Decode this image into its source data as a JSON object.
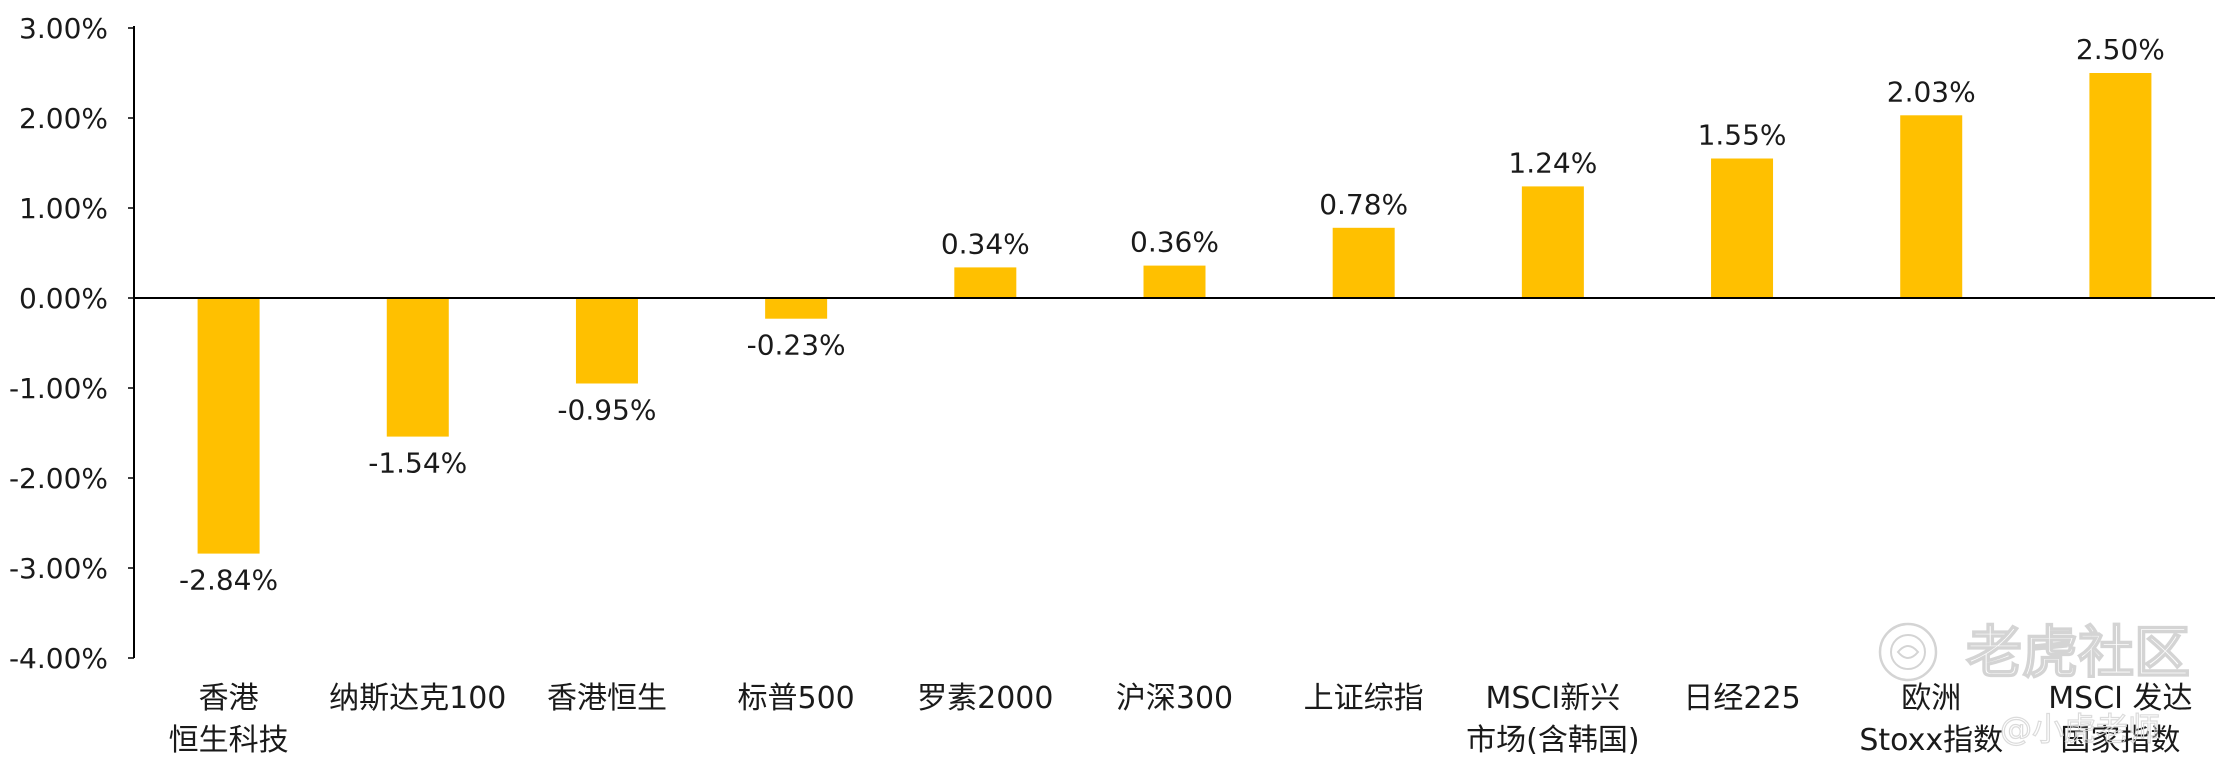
{
  "chart_data": {
    "type": "bar",
    "categories": [
      [
        "香港",
        "恒生科技"
      ],
      [
        "纳斯达克100"
      ],
      [
        "香港恒生"
      ],
      [
        "标普500"
      ],
      [
        "罗素2000"
      ],
      [
        "沪深300"
      ],
      [
        "上证综指"
      ],
      [
        "MSCI新兴",
        "市场(含韩国)"
      ],
      [
        "日经225"
      ],
      [
        "欧洲",
        "Stoxx指数"
      ],
      [
        "MSCI 发达",
        "国家指数"
      ]
    ],
    "values": [
      -2.84,
      -1.54,
      -0.95,
      -0.23,
      0.34,
      0.36,
      0.78,
      1.24,
      1.55,
      2.03,
      2.5
    ],
    "value_labels": [
      "-2.84%",
      "-1.54%",
      "-0.95%",
      "-0.23%",
      "0.34%",
      "0.36%",
      "0.78%",
      "1.24%",
      "1.55%",
      "2.03%",
      "2.50%"
    ],
    "y_ticks": [
      3,
      2,
      1,
      0,
      -1,
      -2,
      -3,
      -4
    ],
    "y_tick_labels": [
      "3.00%",
      "2.00%",
      "1.00%",
      "0.00%",
      "-1.00%",
      "-2.00%",
      "-3.00%",
      "-4.00%"
    ],
    "ylim": [
      -4,
      3
    ],
    "bar_color": "#FFC000",
    "axis_color": "#000000",
    "grid": false,
    "title": "",
    "xlabel": "",
    "ylabel": ""
  },
  "watermark": {
    "brand": "老虎社区",
    "handle": "@小虎老师",
    "icon": "tiger-logo-icon"
  }
}
